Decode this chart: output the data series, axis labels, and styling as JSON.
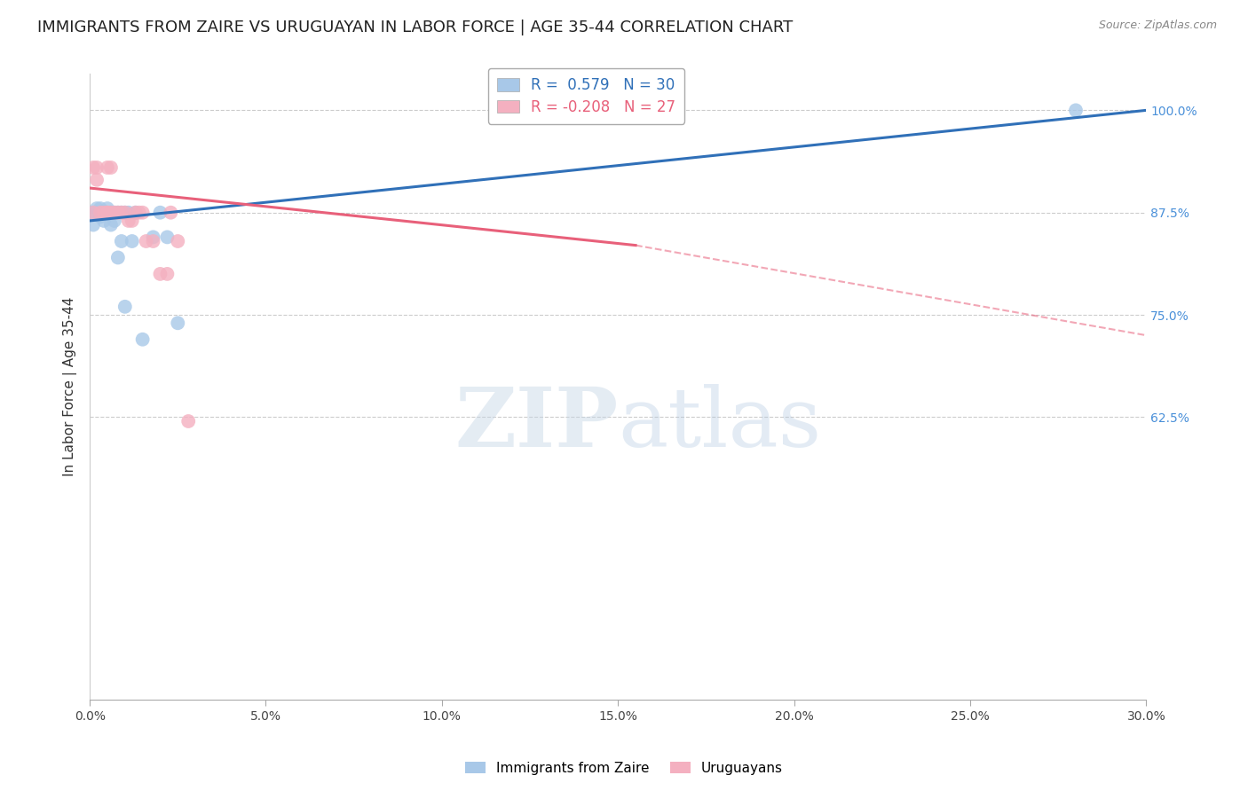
{
  "title": "IMMIGRANTS FROM ZAIRE VS URUGUAYAN IN LABOR FORCE | AGE 35-44 CORRELATION CHART",
  "source": "Source: ZipAtlas.com",
  "ylabel": "In Labor Force | Age 35-44",
  "blue_label": "Immigrants from Zaire",
  "pink_label": "Uruguayans",
  "blue_R": 0.579,
  "blue_N": 30,
  "pink_R": -0.208,
  "pink_N": 27,
  "xlim": [
    0.0,
    0.3
  ],
  "ylim": [
    0.28,
    1.045
  ],
  "yticks": [
    0.625,
    0.75,
    0.875,
    1.0
  ],
  "ytick_labels": [
    "62.5%",
    "75.0%",
    "87.5%",
    "100.0%"
  ],
  "xticks": [
    0.0,
    0.05,
    0.1,
    0.15,
    0.2,
    0.25,
    0.3
  ],
  "xtick_labels": [
    "0.0%",
    "5.0%",
    "10.0%",
    "15.0%",
    "20.0%",
    "25.0%",
    "30.0%"
  ],
  "blue_color": "#a8c8e8",
  "pink_color": "#f4b0c0",
  "blue_line_color": "#3070b8",
  "pink_line_color": "#e8607a",
  "blue_x": [
    0.001,
    0.001,
    0.002,
    0.002,
    0.003,
    0.003,
    0.003,
    0.004,
    0.004,
    0.005,
    0.005,
    0.006,
    0.006,
    0.007,
    0.007,
    0.008,
    0.008,
    0.009,
    0.009,
    0.01,
    0.01,
    0.011,
    0.012,
    0.013,
    0.015,
    0.018,
    0.02,
    0.022,
    0.025,
    0.28
  ],
  "blue_y": [
    0.86,
    0.875,
    0.875,
    0.88,
    0.87,
    0.875,
    0.88,
    0.865,
    0.875,
    0.875,
    0.88,
    0.875,
    0.86,
    0.875,
    0.865,
    0.875,
    0.82,
    0.84,
    0.875,
    0.875,
    0.76,
    0.875,
    0.84,
    0.875,
    0.72,
    0.845,
    0.875,
    0.845,
    0.74,
    1.0
  ],
  "pink_x": [
    0.001,
    0.001,
    0.002,
    0.002,
    0.003,
    0.004,
    0.005,
    0.005,
    0.005,
    0.006,
    0.006,
    0.007,
    0.008,
    0.009,
    0.01,
    0.011,
    0.012,
    0.013,
    0.014,
    0.015,
    0.016,
    0.018,
    0.02,
    0.022,
    0.023,
    0.025,
    0.028
  ],
  "pink_y": [
    0.875,
    0.93,
    0.93,
    0.915,
    0.875,
    0.875,
    0.875,
    0.93,
    0.875,
    0.93,
    0.875,
    0.875,
    0.875,
    0.875,
    0.875,
    0.865,
    0.865,
    0.875,
    0.875,
    0.875,
    0.84,
    0.84,
    0.8,
    0.8,
    0.875,
    0.84,
    0.62
  ],
  "blue_trend_x0": 0.0,
  "blue_trend_y0": 0.865,
  "blue_trend_x1": 0.3,
  "blue_trend_y1": 1.0,
  "pink_trend_x0": 0.0,
  "pink_trend_y0": 0.905,
  "pink_trend_solid_x1": 0.155,
  "pink_trend_solid_y1": 0.835,
  "pink_trend_x1": 0.3,
  "pink_trend_y1": 0.725,
  "watermark_zip": "ZIP",
  "watermark_atlas": "atlas",
  "background_color": "#ffffff",
  "grid_color": "#cccccc",
  "title_fontsize": 13,
  "axis_label_fontsize": 11,
  "tick_fontsize": 10,
  "legend_fontsize": 12
}
